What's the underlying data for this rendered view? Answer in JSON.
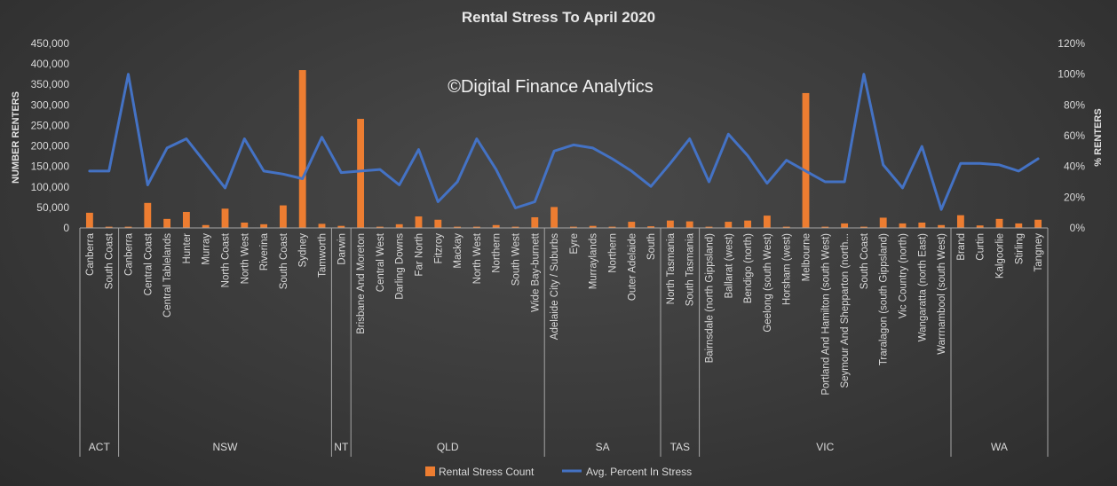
{
  "chart_data": {
    "type": "bar",
    "title": "Rental Stress To April 2020",
    "watermark": "©Digital Finance Analytics",
    "ylabel": "NUMBER RENTERS",
    "y2label": "% RENTERS",
    "ylim": [
      0,
      450000
    ],
    "y2lim": [
      0,
      1.2
    ],
    "yticks": [
      "0",
      "50,000",
      "100,000",
      "150,000",
      "200,000",
      "250,000",
      "300,000",
      "350,000",
      "400,000",
      "450,000"
    ],
    "y2ticks": [
      "0%",
      "20%",
      "40%",
      "60%",
      "80%",
      "100%",
      "120%"
    ],
    "grid": false,
    "legend_position": "bottom",
    "categories": [
      "Canberra",
      "South Coast",
      "Canberra",
      "Central Coast",
      "Central Tablelands",
      "Hunter",
      "Murray",
      "North Coast",
      "North West",
      "Riverina",
      "South Coast",
      "Sydney",
      "Tamworth",
      "Darwin",
      "Brisbane And Moreton",
      "Central West",
      "Darling Downs",
      "Far North",
      "Fitzroy",
      "Mackay",
      "North West",
      "Northern",
      "South West",
      "Wide Bay-burnett",
      "Adelaide City / Suburbs",
      "Eyre",
      "Murraylands",
      "Northern",
      "Outer Adelaide",
      "South",
      "North Tasmania",
      "South Tasmania",
      "Bairnsdale (north Gippsland)",
      "Ballarat (west)",
      "Bendigo (north)",
      "Geelong (south West)",
      "Horsham (west)",
      "Melbourne",
      "Portland And Hamilton (south West)",
      "Seymour And Shepparton (north...",
      "South Coast",
      "Traralagon (south Gippsland)",
      "Vic Country (north)",
      "Wangaratta (north East)",
      "Warrnambool (south West)",
      "Brand",
      "Curtin",
      "Kalgoorlie",
      "Stirling",
      "Tangney"
    ],
    "groups": [
      {
        "label": "ACT",
        "count": 2
      },
      {
        "label": "NSW",
        "count": 11
      },
      {
        "label": "NT",
        "count": 1
      },
      {
        "label": "QLD",
        "count": 10
      },
      {
        "label": "SA",
        "count": 6
      },
      {
        "label": "TAS",
        "count": 2
      },
      {
        "label": "VIC",
        "count": 13
      },
      {
        "label": "WA",
        "count": 5
      }
    ],
    "series": [
      {
        "name": "Rental Stress Count",
        "type": "bar",
        "color": "#ed7d31",
        "axis": "left",
        "values": [
          37000,
          3000,
          3000,
          61000,
          22000,
          39000,
          7000,
          47000,
          13000,
          9000,
          55000,
          385000,
          10000,
          5000,
          266000,
          3000,
          9000,
          28000,
          20000,
          3000,
          3000,
          7000,
          3000,
          26000,
          51000,
          3000,
          5000,
          3000,
          15000,
          4000,
          18000,
          16000,
          3000,
          15000,
          18000,
          30000,
          3000,
          329000,
          3000,
          11000,
          3000,
          25000,
          11000,
          13000,
          7000,
          31000,
          6000,
          22000,
          11000,
          20000
        ]
      },
      {
        "name": "Avg. Percent In Stress",
        "type": "line",
        "color": "#4472c4",
        "axis": "right",
        "values": [
          0.37,
          0.37,
          1.0,
          0.28,
          0.52,
          0.58,
          0.42,
          0.26,
          0.58,
          0.37,
          0.35,
          0.32,
          0.59,
          0.36,
          0.37,
          0.38,
          0.28,
          0.51,
          0.17,
          0.3,
          0.58,
          0.38,
          0.13,
          0.17,
          0.5,
          0.54,
          0.52,
          0.45,
          0.37,
          0.27,
          0.42,
          0.58,
          0.3,
          0.61,
          0.47,
          0.29,
          0.44,
          0.37,
          0.3,
          0.3,
          1.0,
          0.41,
          0.26,
          0.53,
          0.12,
          0.42,
          0.42,
          0.41,
          0.37,
          0.45
        ]
      }
    ]
  }
}
